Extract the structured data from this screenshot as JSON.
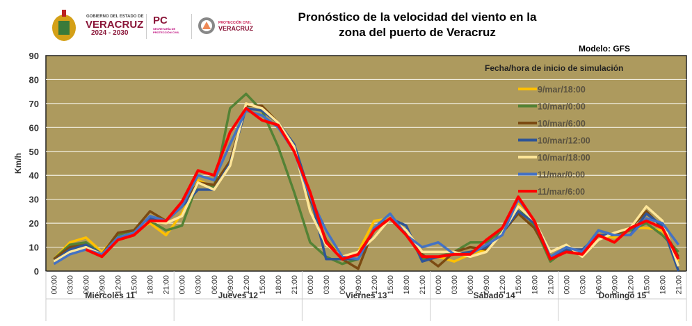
{
  "header": {
    "logo_gov_line1": "GOBIERNO DEL ESTADO DE",
    "logo_gov_line2": "VERACRUZ",
    "logo_gov_line3": "2024 - 2030",
    "logo_pc": "PC",
    "logo_pc_sub": "SECRETARÍA DE PROTECCIÓN CIVIL",
    "logo_pcv_line1": "PROTECCIÓN CIVIL",
    "logo_pcv_line2": "VERACRUZ"
  },
  "chart_data": {
    "type": "line",
    "title": "Pronóstico de la velocidad del viento en la zona del puerto de Veracruz",
    "title_line1": "Pronóstico de la velocidad del viento en la",
    "title_line2": "zona del puerto de Veracruz",
    "model_label": "Modelo: GFS",
    "legend_title": "Fecha/hora de inicio de simulación",
    "ylabel": "Km/h",
    "ylim": [
      0,
      90
    ],
    "yticks": [
      0,
      10,
      20,
      30,
      40,
      50,
      60,
      70,
      80,
      90
    ],
    "grid": true,
    "legend_placement": "top-right",
    "days": [
      "Miércoles 11",
      "Jueves 12",
      "Viernes 13",
      "Sábado 14",
      "Domingo 15"
    ],
    "hours": [
      "00:00",
      "03:00",
      "06:00",
      "09:00",
      "12:00",
      "15:00",
      "18:00",
      "21:00"
    ],
    "series": [
      {
        "name": "9/mar/18:00",
        "color": "#FFC000",
        "values": [
          5,
          12,
          14,
          8,
          15,
          17,
          20,
          15,
          24,
          38,
          35,
          45,
          69,
          69,
          62,
          53,
          25,
          13,
          6,
          8,
          21,
          22,
          16,
          5,
          6,
          4,
          7,
          9,
          17,
          28,
          21,
          6,
          9,
          8,
          15,
          14,
          18,
          18,
          17,
          4
        ]
      },
      {
        "name": "10/mar/0:00",
        "color": "#548235",
        "values": [
          5,
          11,
          12,
          7,
          15,
          17,
          21,
          17,
          19,
          37,
          35,
          68,
          74,
          67,
          52,
          33,
          12,
          6,
          3,
          5,
          17,
          22,
          16,
          5,
          6,
          8,
          12,
          12,
          17,
          27,
          19,
          4,
          9,
          8,
          17,
          15,
          17,
          20,
          15,
          8
        ]
      },
      {
        "name": "10/mar/6:00",
        "color": "#7B4A12",
        "values": [
          5,
          10,
          11,
          7,
          16,
          17,
          25,
          21,
          27,
          37,
          36,
          46,
          69,
          69,
          62,
          52,
          30,
          13,
          5,
          1,
          18,
          22,
          17,
          7,
          2,
          8,
          10,
          9,
          16,
          24,
          18,
          6,
          9,
          8,
          15,
          15,
          18,
          25,
          18,
          6
        ]
      },
      {
        "name": "10/mar/12:00",
        "color": "#2F5597",
        "values": [
          4,
          9,
          11,
          7,
          14,
          16,
          22,
          21,
          27,
          34,
          34,
          45,
          68,
          67,
          62,
          53,
          32,
          5,
          5,
          5,
          17,
          22,
          19,
          4,
          6,
          7,
          8,
          10,
          16,
          25,
          20,
          6,
          9,
          9,
          15,
          15,
          15,
          24,
          19,
          0
        ]
      },
      {
        "name": "10/mar/18:00",
        "color": "#FFE699",
        "values": [
          4,
          8,
          10,
          7,
          14,
          16,
          21,
          20,
          23,
          37,
          34,
          44,
          70,
          68,
          62,
          52,
          25,
          11,
          6,
          8,
          14,
          22,
          17,
          8,
          8,
          8,
          6,
          8,
          16,
          27,
          21,
          8,
          11,
          6,
          13,
          16,
          18,
          27,
          21,
          2
        ]
      },
      {
        "name": "11/mar/0:00",
        "color": "#4472C4",
        "values": [
          3,
          7,
          9,
          7,
          14,
          16,
          23,
          21,
          27,
          40,
          38,
          53,
          67,
          65,
          60,
          50,
          31,
          17,
          6,
          5,
          18,
          24,
          15,
          10,
          12,
          7,
          7,
          11,
          15,
          30,
          21,
          6,
          10,
          8,
          17,
          15,
          15,
          22,
          20,
          11
        ]
      },
      {
        "name": "11/mar/6:00",
        "color": "#FF0000",
        "values": [
          null,
          null,
          9,
          6,
          13,
          15,
          21,
          21,
          29,
          42,
          40,
          58,
          68,
          63,
          61,
          50,
          33,
          12,
          5,
          7,
          17,
          22,
          15,
          6,
          6,
          7,
          7,
          13,
          18,
          31,
          21,
          5,
          8,
          7,
          15,
          12,
          18,
          21,
          18,
          5
        ]
      }
    ]
  }
}
